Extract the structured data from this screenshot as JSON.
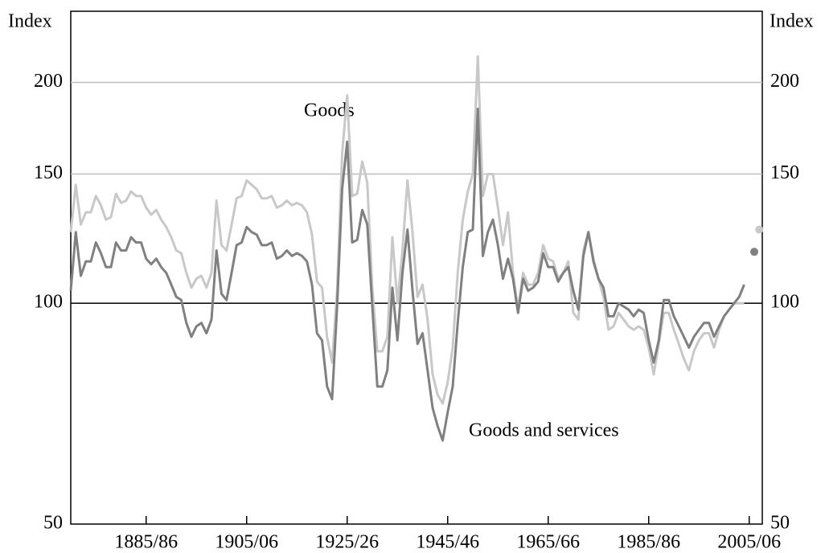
{
  "chart_data": {
    "type": "line",
    "y_axis_label": "Index",
    "log_scale": true,
    "grid": true,
    "xlim": [
      1870,
      2007.6
    ],
    "ylim": [
      50,
      250
    ],
    "yticks": [
      50,
      100,
      150,
      200
    ],
    "xticks": [
      {
        "value": 1885,
        "label": "1885/86"
      },
      {
        "value": 1905,
        "label": "1905/06"
      },
      {
        "value": 1925,
        "label": "1925/26"
      },
      {
        "value": 1945,
        "label": "1945/46"
      },
      {
        "value": 1965,
        "label": "1965/66"
      },
      {
        "value": 1985,
        "label": "1985/86"
      },
      {
        "value": 2005,
        "label": "2005/06"
      }
    ],
    "x": [
      1870,
      1871,
      1872,
      1873,
      1874,
      1875,
      1876,
      1877,
      1878,
      1879,
      1880,
      1881,
      1882,
      1883,
      1884,
      1885,
      1886,
      1887,
      1888,
      1889,
      1890,
      1891,
      1892,
      1893,
      1894,
      1895,
      1896,
      1897,
      1898,
      1899,
      1900,
      1901,
      1902,
      1903,
      1904,
      1905,
      1906,
      1907,
      1908,
      1909,
      1910,
      1911,
      1912,
      1913,
      1914,
      1915,
      1916,
      1917,
      1918,
      1919,
      1920,
      1921,
      1922,
      1923,
      1924,
      1925,
      1926,
      1927,
      1928,
      1929,
      1930,
      1931,
      1932,
      1933,
      1934,
      1935,
      1936,
      1937,
      1938,
      1939,
      1940,
      1941,
      1942,
      1943,
      1944,
      1945,
      1946,
      1947,
      1948,
      1949,
      1950,
      1951,
      1952,
      1953,
      1954,
      1955,
      1956,
      1957,
      1958,
      1959,
      1960,
      1961,
      1962,
      1963,
      1964,
      1965,
      1966,
      1967,
      1968,
      1969,
      1970,
      1971,
      1972,
      1973,
      1974,
      1975,
      1976,
      1977,
      1978,
      1979,
      1980,
      1981,
      1982,
      1983,
      1984,
      1985,
      1986,
      1987,
      1988,
      1989,
      1990,
      1991,
      1992,
      1993,
      1994,
      1995,
      1996,
      1997,
      1998,
      1999,
      2000,
      2001,
      2002,
      2003,
      2004
    ],
    "series": [
      {
        "name": "Goods",
        "color": "#c8c8c8",
        "values": [
          125,
          145,
          128,
          133,
          133,
          140,
          136,
          130,
          131,
          141,
          137,
          138,
          142,
          140,
          140,
          135,
          132,
          134,
          130,
          127,
          123,
          118,
          117,
          110,
          105,
          108,
          109,
          105,
          110,
          138,
          120,
          118,
          128,
          139,
          140,
          147,
          145,
          143,
          139,
          139,
          140,
          135,
          136,
          138,
          136,
          137,
          136,
          133,
          124,
          107,
          105,
          90,
          83,
          104,
          160,
          192,
          140,
          141,
          156,
          146,
          105,
          86,
          86,
          90,
          123,
          100,
          118,
          147,
          125,
          102,
          106,
          95,
          80,
          75,
          73,
          78,
          87,
          110,
          130,
          142,
          150,
          217,
          140,
          150,
          150,
          135,
          120,
          133,
          110,
          98,
          110,
          106,
          106,
          110,
          120,
          115,
          114,
          108,
          110,
          114,
          97,
          95,
          118,
          125,
          115,
          108,
          102,
          92,
          93,
          97,
          95,
          93,
          92,
          93,
          92,
          87,
          80,
          88,
          97,
          97,
          92,
          88,
          84,
          81,
          86,
          89,
          91,
          91,
          87,
          92,
          96,
          98,
          100,
          100,
          100
        ],
        "forecast": {
          "x": 2007,
          "value": 126
        }
      },
      {
        "name": "Goods and services",
        "color": "#808080",
        "values": [
          104,
          125,
          109,
          114,
          114,
          121,
          117,
          112,
          112,
          121,
          118,
          118,
          123,
          121,
          121,
          115,
          113,
          115,
          112,
          110,
          106,
          102,
          101,
          94,
          90,
          93,
          94,
          91,
          95,
          118,
          103,
          101,
          110,
          120,
          121,
          127,
          125,
          124,
          120,
          120,
          121,
          115,
          116,
          118,
          116,
          117,
          116,
          114,
          106,
          91,
          89,
          77,
          74,
          99,
          143,
          166,
          121,
          122,
          134,
          128,
          99,
          77,
          77,
          81,
          105,
          89,
          110,
          126,
          104,
          88,
          91,
          81,
          72,
          68,
          65,
          71,
          77,
          94,
          112,
          125,
          126,
          184,
          116,
          125,
          130,
          120,
          108,
          115,
          108,
          97,
          108,
          104,
          105,
          107,
          117,
          112,
          112,
          107,
          110,
          112,
          104,
          98,
          116,
          125,
          114,
          108,
          105,
          96,
          96,
          100,
          99,
          98,
          96,
          98,
          97,
          89,
          83,
          89,
          101,
          101,
          96,
          93,
          90,
          87,
          90,
          92,
          94,
          94,
          90,
          93,
          96,
          98,
          100,
          102,
          106
        ],
        "forecast": {
          "x": 2006,
          "value": 117.5
        }
      }
    ]
  }
}
